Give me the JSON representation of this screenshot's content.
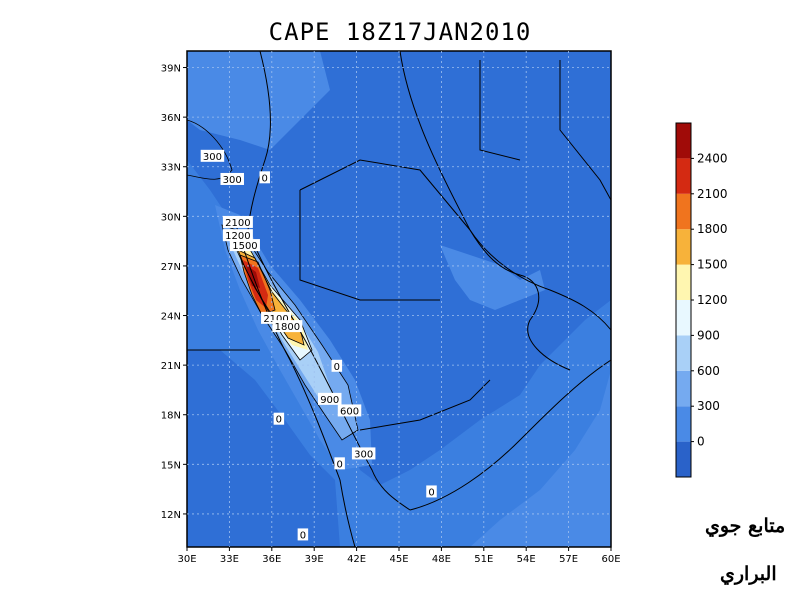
{
  "title": "CAPE 18Z17JAN2010",
  "credits": [
    "متابع جوي",
    "البراري"
  ],
  "colors": {
    "ocean": "#3b7fe0",
    "land_base": "#2f6fd6",
    "scale": [
      "#2a62c9",
      "#4a8ae6",
      "#75aaf0",
      "#a9d0f7",
      "#e8f8ff",
      "#fff6b0",
      "#f7b23a",
      "#f0741e",
      "#d42a12",
      "#a00b08"
    ]
  },
  "chart_data": {
    "type": "heatmap",
    "title": "CAPE 18Z17JAN2010",
    "x_ticks": [
      "30E",
      "33E",
      "36E",
      "39E",
      "42E",
      "45E",
      "48E",
      "51E",
      "54E",
      "57E",
      "60E"
    ],
    "y_ticks": [
      "12N",
      "15N",
      "18N",
      "21N",
      "24N",
      "27N",
      "30N",
      "33N",
      "36N",
      "39N"
    ],
    "xlim": [
      30,
      60
    ],
    "ylim": [
      10,
      40
    ],
    "colorbar": {
      "labels": [
        "0",
        "300",
        "600",
        "900",
        "1200",
        "1500",
        "1800",
        "2100",
        "2400"
      ],
      "levels": [
        0,
        300,
        600,
        900,
        1200,
        1500,
        1800,
        2100,
        2400
      ]
    },
    "contour_labels": [
      {
        "text": "300",
        "lon": 31.8,
        "lat": 33.6
      },
      {
        "text": "300",
        "lon": 33.2,
        "lat": 32.2
      },
      {
        "text": "0",
        "lon": 35.5,
        "lat": 32.3
      },
      {
        "text": "2100",
        "lon": 33.6,
        "lat": 29.6
      },
      {
        "text": "1200",
        "lon": 33.6,
        "lat": 28.8
      },
      {
        "text": "1500",
        "lon": 34.1,
        "lat": 28.2
      },
      {
        "text": "2100",
        "lon": 36.3,
        "lat": 23.8
      },
      {
        "text": "1800",
        "lon": 37.1,
        "lat": 23.3
      },
      {
        "text": "0",
        "lon": 40.6,
        "lat": 20.9
      },
      {
        "text": "900",
        "lon": 40.1,
        "lat": 18.9
      },
      {
        "text": "600",
        "lon": 41.5,
        "lat": 18.2
      },
      {
        "text": "0",
        "lon": 36.5,
        "lat": 17.7
      },
      {
        "text": "300",
        "lon": 42.5,
        "lat": 15.6
      },
      {
        "text": "0",
        "lon": 40.8,
        "lat": 15.0
      },
      {
        "text": "0",
        "lon": 47.3,
        "lat": 13.3
      },
      {
        "text": "0",
        "lon": 38.2,
        "lat": 10.7
      }
    ]
  }
}
